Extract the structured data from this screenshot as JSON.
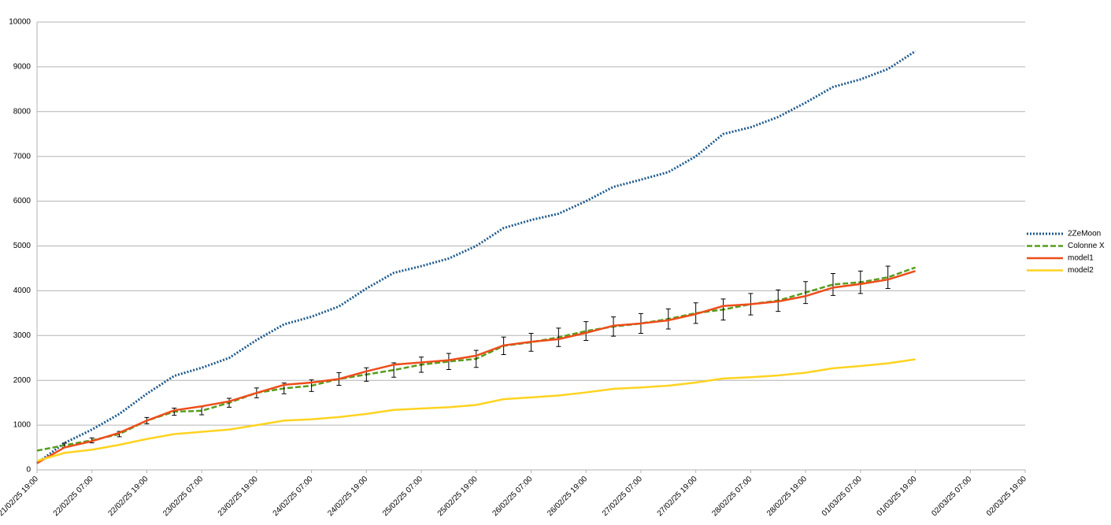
{
  "chart_data": {
    "type": "line",
    "x": [
      "2025-02-21T19:00",
      "2025-02-22T01:00",
      "2025-02-22T07:00",
      "2025-02-22T13:00",
      "2025-02-22T19:00",
      "2025-02-23T01:00",
      "2025-02-23T07:00",
      "2025-02-23T13:00",
      "2025-02-23T19:00",
      "2025-02-24T01:00",
      "2025-02-24T07:00",
      "2025-02-24T13:00",
      "2025-02-24T19:00",
      "2025-02-25T01:00",
      "2025-02-25T07:00",
      "2025-02-25T13:00",
      "2025-02-25T19:00",
      "2025-02-26T01:00",
      "2025-02-26T07:00",
      "2025-02-26T13:00",
      "2025-02-26T19:00",
      "2025-02-27T01:00",
      "2025-02-27T07:00",
      "2025-02-27T13:00",
      "2025-02-27T19:00",
      "2025-02-28T01:00",
      "2025-02-28T07:00",
      "2025-02-28T13:00",
      "2025-02-28T19:00",
      "2025-03-01T01:00",
      "2025-03-01T07:00",
      "2025-03-01T13:00",
      "2025-03-01T19:00"
    ],
    "series": [
      {
        "name": "2ZeMoon",
        "color": "#1f5a8c",
        "dash": "dotted",
        "values": [
          150,
          600,
          900,
          1250,
          1700,
          2100,
          2280,
          2500,
          2900,
          3250,
          3420,
          3650,
          4050,
          4400,
          4550,
          4720,
          5000,
          5400,
          5580,
          5720,
          6000,
          6320,
          6480,
          6650,
          7000,
          7500,
          7650,
          7880,
          8200,
          8550,
          8720,
          8950,
          9350
        ]
      },
      {
        "name": "Colonne X",
        "color": "#579d1c",
        "dash": "dashed",
        "values": [
          430,
          550,
          660,
          800,
          1100,
          1300,
          1320,
          1500,
          1720,
          1820,
          1880,
          2030,
          2130,
          2230,
          2350,
          2420,
          2480,
          2770,
          2850,
          2960,
          3100,
          3200,
          3270,
          3370,
          3500,
          3580,
          3700,
          3780,
          3960,
          4140,
          4190,
          4300,
          4520
        ],
        "errors": [
          null,
          50,
          55,
          60,
          70,
          80,
          90,
          100,
          110,
          120,
          130,
          140,
          150,
          160,
          170,
          180,
          190,
          195,
          200,
          205,
          210,
          215,
          220,
          225,
          230,
          235,
          240,
          240,
          245,
          245,
          250,
          250,
          null
        ]
      },
      {
        "name": "model1",
        "color": "#ee4c1a",
        "dash": "solid",
        "values": [
          150,
          500,
          640,
          830,
          1100,
          1330,
          1420,
          1530,
          1720,
          1900,
          1950,
          2030,
          2200,
          2350,
          2400,
          2450,
          2550,
          2780,
          2860,
          2920,
          3060,
          3220,
          3270,
          3340,
          3480,
          3660,
          3700,
          3760,
          3880,
          4070,
          4150,
          4250,
          4440
        ]
      },
      {
        "name": "model2",
        "color": "#ffd320",
        "dash": "solid",
        "values": [
          200,
          380,
          450,
          560,
          690,
          800,
          850,
          900,
          1000,
          1100,
          1130,
          1180,
          1250,
          1340,
          1370,
          1400,
          1450,
          1580,
          1620,
          1660,
          1730,
          1810,
          1840,
          1880,
          1950,
          2040,
          2070,
          2110,
          2170,
          2270,
          2320,
          2380,
          2470
        ]
      }
    ],
    "xlim": [
      "2025-02-21T19:00",
      "2025-03-02T19:00"
    ],
    "xticks": [
      {
        "value": "2025-02-21T19:00",
        "label": "21/02/25 19:00"
      },
      {
        "value": "2025-02-22T07:00",
        "label": "22/02/25 07:00"
      },
      {
        "value": "2025-02-22T19:00",
        "label": "22/02/25 19:00"
      },
      {
        "value": "2025-02-23T07:00",
        "label": "23/02/25 07:00"
      },
      {
        "value": "2025-02-23T19:00",
        "label": "23/02/25 19:00"
      },
      {
        "value": "2025-02-24T07:00",
        "label": "24/02/25 07:00"
      },
      {
        "value": "2025-02-24T19:00",
        "label": "24/02/25 19:00"
      },
      {
        "value": "2025-02-25T07:00",
        "label": "25/02/25 07:00"
      },
      {
        "value": "2025-02-25T19:00",
        "label": "25/02/25 19:00"
      },
      {
        "value": "2025-02-26T07:00",
        "label": "26/02/25 07:00"
      },
      {
        "value": "2025-02-26T19:00",
        "label": "26/02/25 19:00"
      },
      {
        "value": "2025-02-27T07:00",
        "label": "27/02/25 07:00"
      },
      {
        "value": "2025-02-27T19:00",
        "label": "27/02/25 19:00"
      },
      {
        "value": "2025-02-28T07:00",
        "label": "28/02/25 07:00"
      },
      {
        "value": "2025-02-28T19:00",
        "label": "28/02/25 19:00"
      },
      {
        "value": "2025-03-01T07:00",
        "label": "01/03/25 07:00"
      },
      {
        "value": "2025-03-01T19:00",
        "label": "01/03/25 19:00"
      },
      {
        "value": "2025-03-02T07:00",
        "label": "02/03/25 07:00"
      },
      {
        "value": "2025-03-02T19:00",
        "label": "02/03/25 19:00"
      }
    ],
    "ylim": [
      0,
      10000
    ],
    "yticks": [
      0,
      1000,
      2000,
      3000,
      4000,
      5000,
      6000,
      7000,
      8000,
      9000,
      10000
    ],
    "grid": true,
    "legend": "right"
  }
}
